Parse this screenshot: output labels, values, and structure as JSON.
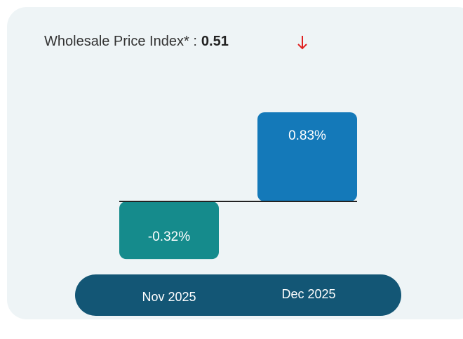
{
  "chart_data": {
    "type": "bar",
    "title": "Wholesale Price Index* :",
    "headline_value": 0.51,
    "categories": [
      "Nov 2025",
      "Dec 2025"
    ],
    "values": [
      -0.32,
      0.83
    ],
    "value_labels": [
      "-0.32%",
      "0.83%"
    ],
    "colors": [
      "#158b8c",
      "#1479b9"
    ]
  }
}
